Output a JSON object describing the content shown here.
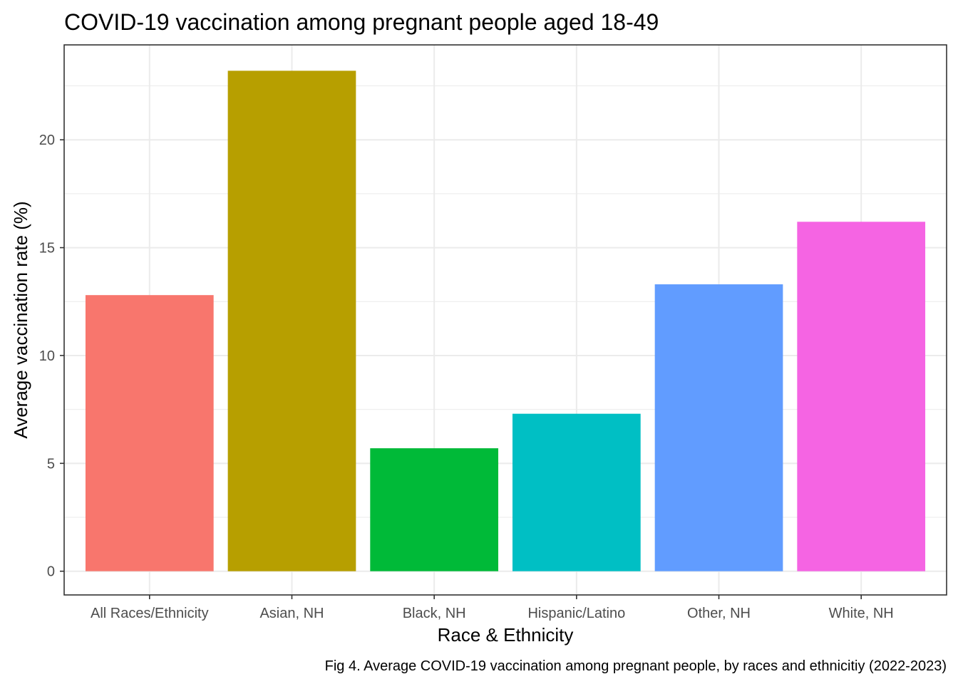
{
  "chart_data": {
    "type": "bar",
    "title": "COVID-19 vaccination among pregnant people aged 18-49",
    "xlabel": "Race & Ethnicity",
    "ylabel": "Average vaccination rate (%)",
    "caption": "Fig 4. Average COVID-19 vaccination among pregnant people, by races and ethnicitiy (2022-2023)",
    "categories": [
      "All Races/Ethnicity",
      "Asian, NH",
      "Black, NH",
      "Hispanic/Latino",
      "Other, NH",
      "White, NH"
    ],
    "values": [
      12.8,
      23.2,
      5.7,
      7.3,
      13.3,
      16.2
    ],
    "colors": [
      "#F8766D",
      "#B79F00",
      "#00BA38",
      "#00BFC4",
      "#619CFF",
      "#F564E3"
    ],
    "y_ticks": [
      "0",
      "5",
      "10",
      "15",
      "20"
    ],
    "ylim": [
      -1.1,
      24.4
    ],
    "grid": true,
    "legend": "none"
  }
}
